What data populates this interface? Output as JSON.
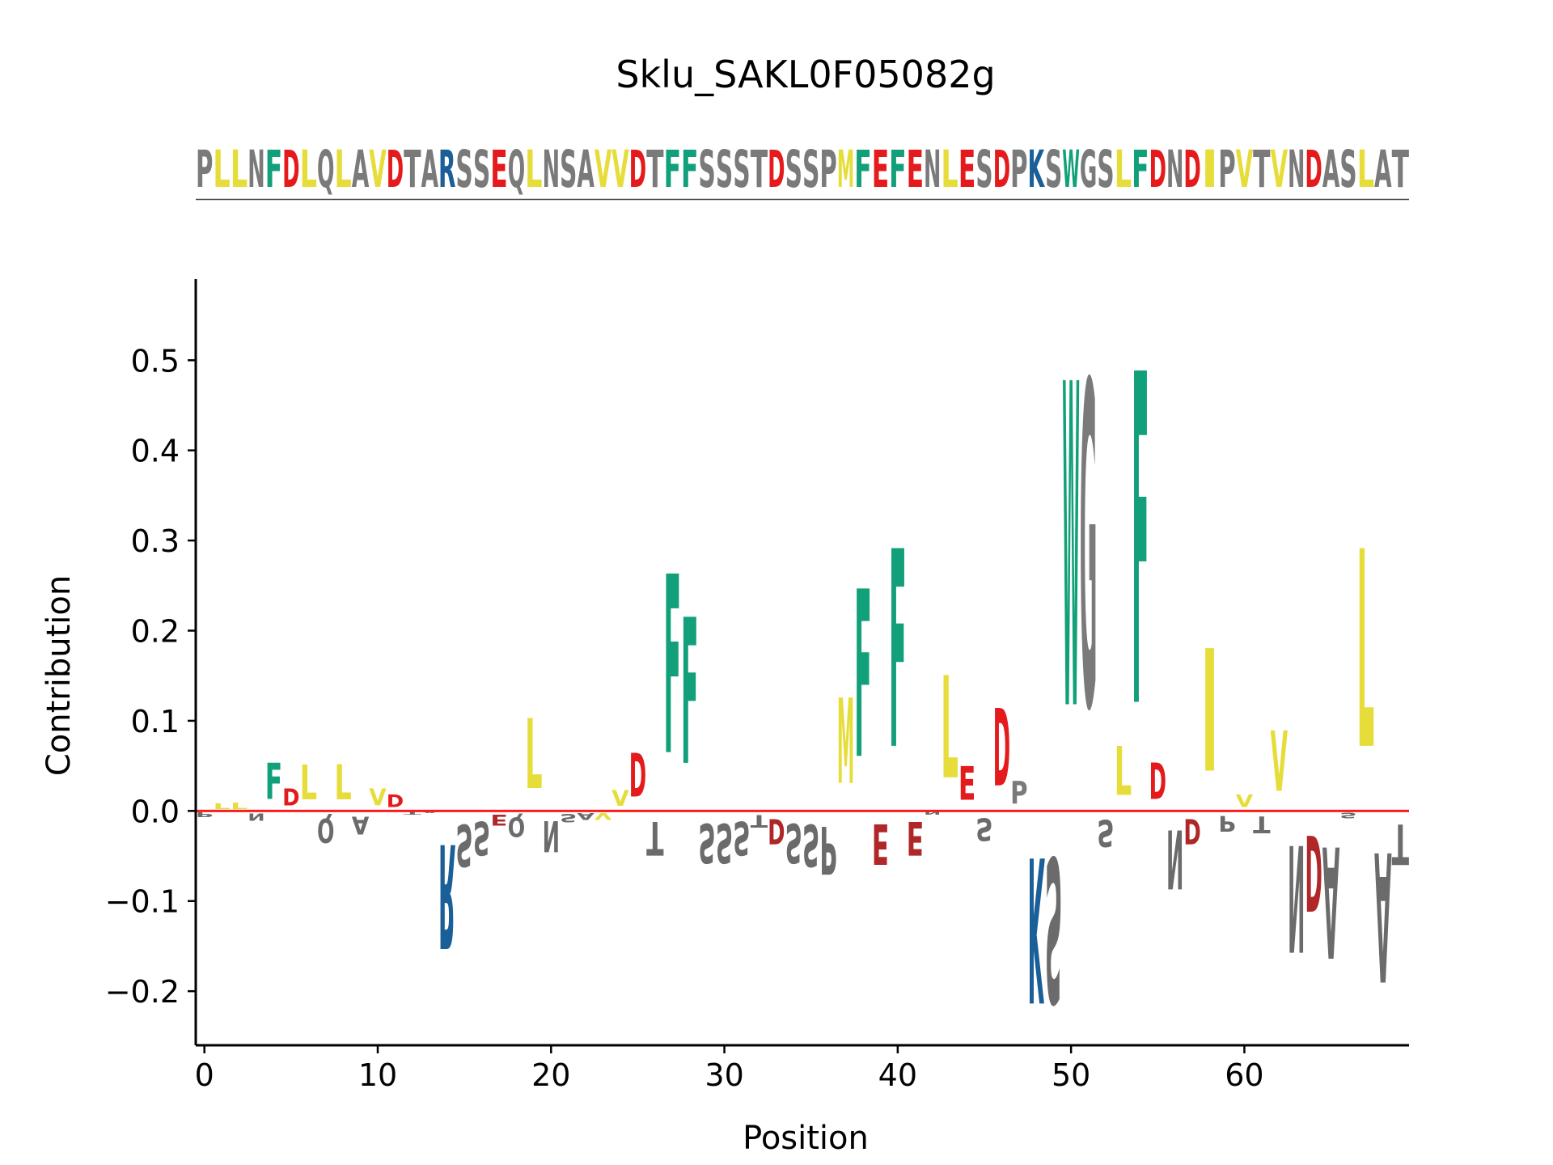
{
  "chart_data": {
    "type": "sequence-logo",
    "title": "Sklu_SAKL0F05082g",
    "sequence": "PLLNFDLQLAVDTARSSEQLNSAVVDTFFSSSTDSSPMFEFENLESDPKSWGSLFDNDIPVTVNDASLAT",
    "xlabel": "Position",
    "ylabel": "Contribution",
    "xlim": [
      -0.5,
      69.5
    ],
    "ylim": [
      -0.26,
      0.59
    ],
    "xticks": [
      "0",
      "10",
      "20",
      "30",
      "40",
      "50",
      "60"
    ],
    "yticks": [
      "−0.2",
      "−0.1",
      "0.0",
      "0.1",
      "0.2",
      "0.3",
      "0.4",
      "0.5"
    ],
    "contributions": [
      -0.008,
      0.01,
      0.011,
      -0.013,
      0.065,
      0.03,
      0.062,
      -0.043,
      0.063,
      -0.032,
      0.03,
      0.022,
      -0.005,
      -0.003,
      -0.185,
      -0.075,
      -0.06,
      -0.02,
      -0.035,
      0.125,
      -0.055,
      -0.015,
      -0.012,
      -0.012,
      0.028,
      0.078,
      -0.06,
      0.318,
      0.26,
      -0.07,
      -0.07,
      -0.06,
      -0.022,
      -0.045,
      -0.07,
      -0.075,
      -0.085,
      0.152,
      0.298,
      -0.072,
      0.352,
      -0.06,
      -0.005,
      0.182,
      0.06,
      -0.04,
      0.138,
      0.04,
      -0.258,
      -0.258,
      0.577,
      0.577,
      -0.048,
      0.087,
      0.59,
      0.065,
      -0.105,
      -0.045,
      0.218,
      -0.028,
      0.022,
      -0.03,
      0.108,
      -0.19,
      -0.135,
      -0.198,
      -0.01,
      0.352,
      -0.23,
      -0.072
    ],
    "colors": {
      "F": "#11a079",
      "W": "#11a079",
      "D": "#e41a1c",
      "E": "#e41a1c",
      "K": "#1a5f97",
      "R": "#1a5f97",
      "L": "#e6dd3a",
      "V": "#e6dd3a",
      "I": "#e6dd3a",
      "M": "#e6dd3a",
      "other": "#7a7a7a",
      "negative_acidic": "#b0272a",
      "negative_other": "#6b6b6b",
      "baseline": "#ff1a1a"
    }
  }
}
